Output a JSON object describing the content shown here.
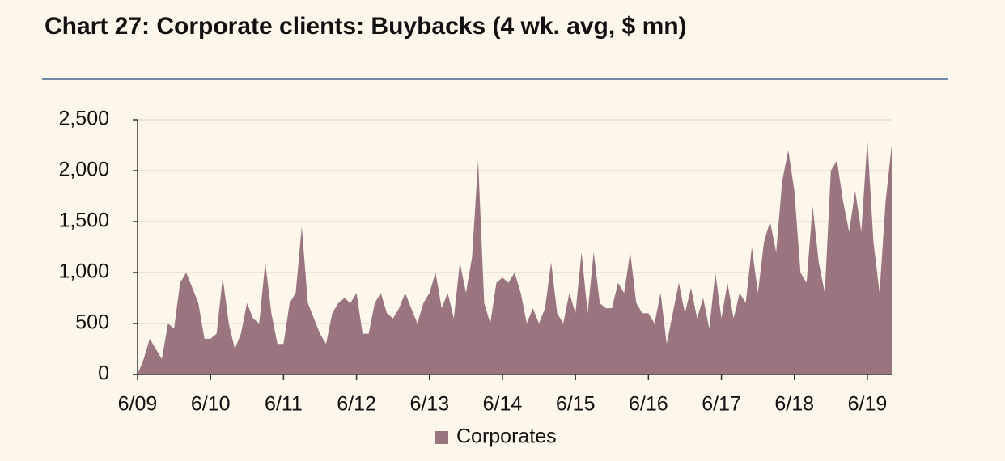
{
  "chart_data": {
    "type": "area",
    "title": "Chart 27: Corporate clients: Buybacks (4 wk. avg, $ mn)",
    "categories": [
      "6/09",
      null,
      null,
      null,
      null,
      null,
      null,
      null,
      null,
      null,
      null,
      null,
      "6/10",
      null,
      null,
      null,
      null,
      null,
      null,
      null,
      null,
      null,
      null,
      null,
      "6/11",
      null,
      null,
      null,
      null,
      null,
      null,
      null,
      null,
      null,
      null,
      null,
      "6/12",
      null,
      null,
      null,
      null,
      null,
      null,
      null,
      null,
      null,
      null,
      null,
      "6/13",
      null,
      null,
      null,
      null,
      null,
      null,
      null,
      null,
      null,
      null,
      null,
      "6/14",
      null,
      null,
      null,
      null,
      null,
      null,
      null,
      null,
      null,
      null,
      null,
      "6/15",
      null,
      null,
      null,
      null,
      null,
      null,
      null,
      null,
      null,
      null,
      null,
      "6/16",
      null,
      null,
      null,
      null,
      null,
      null,
      null,
      null,
      null,
      null,
      null,
      "6/17",
      null,
      null,
      null,
      null,
      null,
      null,
      null,
      null,
      null,
      null,
      null,
      "6/18",
      null,
      null,
      null,
      null,
      null,
      null,
      null,
      null,
      null,
      null,
      null,
      "6/19",
      null,
      null,
      null,
      null
    ],
    "series": [
      {
        "name": "Corporates",
        "color": "#9a7580",
        "values": [
          0,
          150,
          350,
          250,
          150,
          500,
          450,
          900,
          1000,
          850,
          700,
          350,
          350,
          400,
          950,
          500,
          250,
          400,
          700,
          550,
          500,
          1100,
          600,
          300,
          300,
          700,
          800,
          1450,
          700,
          550,
          400,
          300,
          600,
          700,
          750,
          700,
          800,
          400,
          400,
          700,
          800,
          600,
          550,
          650,
          800,
          650,
          500,
          700,
          800,
          1000,
          650,
          800,
          550,
          1100,
          800,
          1150,
          2100,
          700,
          500,
          900,
          950,
          900,
          1000,
          800,
          500,
          650,
          500,
          650,
          1100,
          600,
          500,
          800,
          600,
          1200,
          600,
          1200,
          700,
          650,
          650,
          900,
          800,
          1200,
          700,
          600,
          600,
          500,
          800,
          300,
          600,
          900,
          600,
          850,
          550,
          750,
          450,
          1000,
          550,
          900,
          550,
          800,
          700,
          1250,
          800,
          1300,
          1500,
          1200,
          1900,
          2200,
          1800,
          1000,
          900,
          1650,
          1100,
          800,
          2000,
          2100,
          1700,
          1400,
          1800,
          1400,
          2300,
          1300,
          800,
          1700,
          2250
        ]
      }
    ],
    "ylim": [
      0,
      2500
    ],
    "yticks": [
      0,
      500,
      {
        "value": 1000,
        "label": "1,000"
      },
      {
        "value": 1500,
        "label": "1,500"
      },
      {
        "value": 2000,
        "label": "2,000"
      },
      {
        "value": 2500,
        "label": "2,500"
      }
    ],
    "grid": true,
    "legend": "bottom"
  }
}
